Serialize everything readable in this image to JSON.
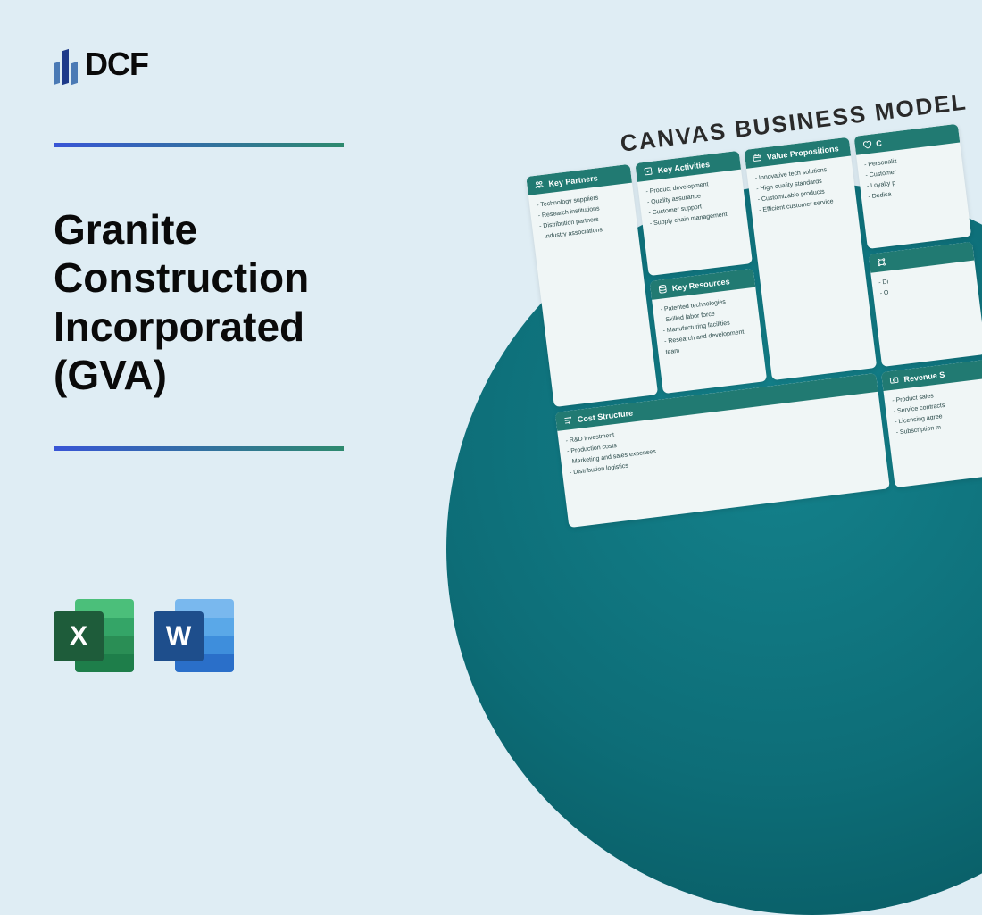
{
  "logo": {
    "text": "DCF"
  },
  "title": "Granite Construction Incorporated (GVA)",
  "colors": {
    "page_bg": "#dfedf4",
    "gradient_start": "#3855d6",
    "gradient_end": "#2d8a6e",
    "circle": "#0d6d77",
    "card_header_bg": "#217a72",
    "card_bg": "#f0f6f6"
  },
  "file_icons": {
    "excel": {
      "label": "X"
    },
    "word": {
      "label": "W"
    }
  },
  "canvas": {
    "title": "CANVAS BUSINESS MODEL",
    "blocks": {
      "key_partners": {
        "label": "Key Partners",
        "items": [
          "Technology suppliers",
          "Research institutions",
          "Distribution partners",
          "Industry associations"
        ]
      },
      "key_activities": {
        "label": "Key Activities",
        "items": [
          "Product development",
          "Quality assurance",
          "Customer support",
          "Supply chain management"
        ]
      },
      "key_resources": {
        "label": "Key Resources",
        "items": [
          "Patented technologies",
          "Skilled labor force",
          "Manufacturing facilities",
          "Research and development team"
        ]
      },
      "value_propositions": {
        "label": "Value Propositions",
        "items": [
          "Innovative tech solutions",
          "High-quality standards",
          "Customizable products",
          "Efficient customer service"
        ]
      },
      "customer_relationships": {
        "label": "C",
        "items": [
          "Personaliz",
          "Customer",
          "Loyalty p",
          "Dedica"
        ]
      },
      "channels": {
        "label": "",
        "items": [
          "Di",
          "O"
        ]
      },
      "cost_structure": {
        "label": "Cost Structure",
        "items": [
          "R&D investment",
          "Production costs",
          "Marketing and sales expenses",
          "Distribution logistics"
        ]
      },
      "revenue_streams": {
        "label": "Revenue S",
        "items": [
          "Product sales",
          "Service contracts",
          "Licensing agree",
          "Subscription m"
        ]
      }
    }
  }
}
